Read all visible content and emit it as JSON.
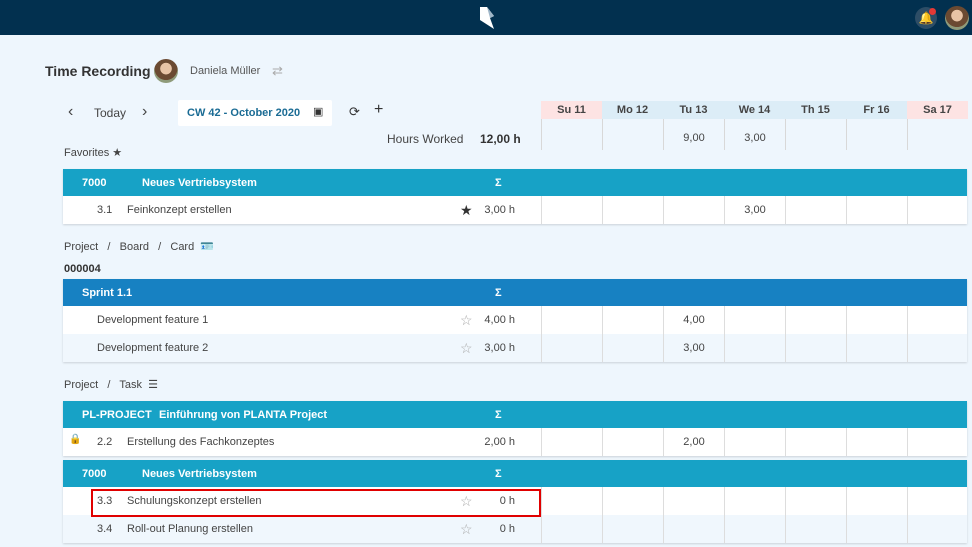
{
  "app": {
    "notifications": true,
    "colors": {
      "topbar": "#02304f",
      "group_teal": "#17a2c6",
      "group_blue": "#1781c2",
      "weekend": "#fde3e3",
      "weekday": "#dcedf7",
      "highlight": "#e00000"
    }
  },
  "header": {
    "title": "Time Recording",
    "user": "Daniela Müller",
    "switch_icon": "swap-icon"
  },
  "toolbar": {
    "prev": "‹",
    "today": "Today",
    "next": "›",
    "week": "CW 42 - October 2020",
    "calendar_icon": "calendar-icon",
    "refresh_icon": "refresh-icon",
    "add": "+"
  },
  "days": [
    {
      "label": "Su 11",
      "weekend": true,
      "total": ""
    },
    {
      "label": "Mo 12",
      "weekend": false,
      "total": ""
    },
    {
      "label": "Tu 13",
      "weekend": false,
      "total": "9,00"
    },
    {
      "label": "We 14",
      "weekend": false,
      "total": "3,00"
    },
    {
      "label": "Th 15",
      "weekend": false,
      "total": ""
    },
    {
      "label": "Fr 16",
      "weekend": false,
      "total": ""
    },
    {
      "label": "Sa 17",
      "weekend": true,
      "total": ""
    }
  ],
  "hours_worked": {
    "label": "Hours Worked",
    "value": "12,00 h"
  },
  "sections": [
    {
      "type": "label",
      "text": "Favorites ★"
    },
    {
      "type": "group",
      "code": "7000",
      "name": "Neues Vertriebsystem",
      "sigma": "Σ",
      "color": "#17a2c6",
      "nameX": 79,
      "rows": [
        {
          "code": "3.1",
          "name": "Feinkonzept erstellen",
          "star": "filled",
          "hours": "3,00 h",
          "days": [
            "",
            "",
            "",
            "3,00",
            "",
            "",
            ""
          ]
        }
      ]
    },
    {
      "type": "label",
      "text": "Project   /   Board   /   Card  🪪"
    },
    {
      "type": "label",
      "bold": true,
      "text": "000004"
    },
    {
      "type": "group",
      "code": "Sprint 1.1",
      "name": "",
      "sigma": "Σ",
      "color": "#1781c2",
      "rows": [
        {
          "code": "",
          "name": "Development feature 1",
          "star": "empty",
          "hours": "4,00 h",
          "days": [
            "",
            "",
            "4,00",
            "",
            "",
            "",
            ""
          ]
        },
        {
          "code": "",
          "name": "Development feature 2",
          "star": "empty",
          "hours": "3,00 h",
          "days": [
            "",
            "",
            "3,00",
            "",
            "",
            "",
            ""
          ]
        }
      ]
    },
    {
      "type": "label",
      "text": "Project   /   Task  ☰"
    },
    {
      "type": "group",
      "code": "PL-PROJECT",
      "name": "Einführung von PLANTA Project",
      "sigma": "Σ",
      "color": "#17a2c6",
      "nameX": 96,
      "rows": [
        {
          "code": "2.2",
          "name": "Erstellung des Fachkonzeptes",
          "star": "none",
          "locked": true,
          "hours": "2,00 h",
          "days": [
            "",
            "",
            "2,00",
            "",
            "",
            "",
            ""
          ]
        }
      ]
    },
    {
      "type": "group",
      "code": "7000",
      "name": "Neues Vertriebsystem",
      "sigma": "Σ",
      "color": "#17a2c6",
      "nameX": 79,
      "rows": [
        {
          "code": "3.3",
          "name": "Schulungskonzept erstellen",
          "star": "empty",
          "hours": "0 h",
          "highlighted": true,
          "days": [
            "",
            "",
            "",
            "",
            "",
            "",
            ""
          ]
        },
        {
          "code": "3.4",
          "name": "Roll-out Planung erstellen",
          "star": "empty",
          "hours": "0 h",
          "days": [
            "",
            "",
            "",
            "",
            "",
            "",
            ""
          ]
        }
      ]
    }
  ]
}
